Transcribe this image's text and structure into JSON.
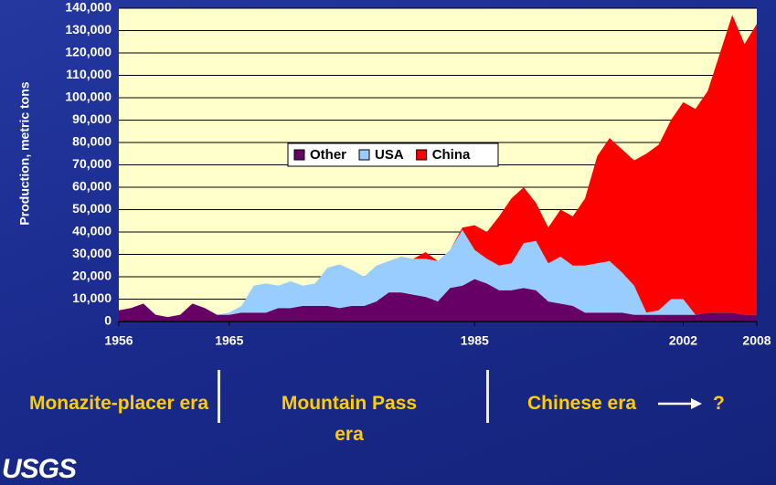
{
  "chart_data": {
    "type": "stacked-area",
    "ylabel": "Production, metric tons",
    "x": [
      1956,
      1957,
      1958,
      1959,
      1960,
      1961,
      1962,
      1963,
      1964,
      1965,
      1966,
      1967,
      1968,
      1969,
      1970,
      1971,
      1972,
      1973,
      1974,
      1975,
      1976,
      1977,
      1978,
      1979,
      1980,
      1981,
      1982,
      1983,
      1984,
      1985,
      1986,
      1987,
      1988,
      1989,
      1990,
      1991,
      1992,
      1993,
      1994,
      1995,
      1996,
      1997,
      1998,
      1999,
      2000,
      2001,
      2002,
      2003,
      2004,
      2005,
      2006,
      2007,
      2008
    ],
    "series": [
      {
        "name": "Other",
        "color": "#660066",
        "values": [
          5000,
          6000,
          8000,
          3000,
          2000,
          3000,
          8000,
          6000,
          3000,
          3000,
          4000,
          4000,
          4000,
          6000,
          6000,
          7000,
          7000,
          7000,
          6000,
          7000,
          7000,
          9000,
          13000,
          13000,
          12000,
          11000,
          9000,
          15000,
          16000,
          19000,
          17000,
          14000,
          14000,
          15000,
          14000,
          9000,
          8000,
          7000,
          4000,
          4000,
          4000,
          4000,
          3000,
          3000,
          3000,
          3000,
          3000,
          3000,
          4000,
          4000,
          4000,
          3000,
          3000
        ]
      },
      {
        "name": "USA",
        "color": "#99ccff",
        "values": [
          0,
          0,
          0,
          0,
          0,
          0,
          0,
          0,
          0,
          1000,
          3000,
          12000,
          13000,
          10000,
          12000,
          9000,
          10000,
          17000,
          19500,
          16000,
          13000,
          16000,
          14000,
          16000,
          16000,
          17000,
          18000,
          17000,
          25000,
          13000,
          11000,
          11000,
          12000,
          20000,
          22000,
          17000,
          21000,
          18000,
          21000,
          22000,
          23000,
          18000,
          13000,
          1000,
          2000,
          7000,
          7000,
          0,
          0,
          0,
          0,
          0,
          0
        ]
      },
      {
        "name": "China",
        "color": "#ff0000",
        "values": [
          0,
          0,
          0,
          0,
          0,
          0,
          0,
          0,
          0,
          0,
          0,
          0,
          0,
          0,
          0,
          0,
          0,
          0,
          0,
          0,
          0,
          0,
          0,
          0,
          0,
          3000,
          0,
          0,
          1000,
          11000,
          12000,
          22000,
          29000,
          25000,
          17000,
          16000,
          21000,
          22000,
          30000,
          48000,
          55000,
          55000,
          56000,
          71000,
          74000,
          80000,
          88000,
          92000,
          99000,
          116000,
          133000,
          121000,
          130000
        ]
      }
    ],
    "xlim": [
      1956,
      2008
    ],
    "xticks": [
      1956,
      1965,
      1985,
      2002,
      2008
    ],
    "ylim": [
      0,
      140000
    ],
    "yticks": [
      {
        "value": 0,
        "label": "0"
      },
      {
        "value": 10000,
        "label": "10,000"
      },
      {
        "value": 20000,
        "label": "20,000"
      },
      {
        "value": 30000,
        "label": "30,000"
      },
      {
        "value": 40000,
        "label": "40,000"
      },
      {
        "value": 50000,
        "label": "50,000"
      },
      {
        "value": 60000,
        "label": "60,000"
      },
      {
        "value": 70000,
        "label": "70,000"
      },
      {
        "value": 80000,
        "label": "80,000"
      },
      {
        "value": 90000,
        "label": "90,000"
      },
      {
        "value": 100000,
        "label": "100,000"
      },
      {
        "value": 110000,
        "label": "110,000"
      },
      {
        "value": 120000,
        "label": "120,000"
      },
      {
        "value": 130000,
        "label": "130,000"
      },
      {
        "value": 140000,
        "label": "140,000"
      }
    ],
    "grid": true,
    "plot_background": "#ffffcc"
  },
  "eras": [
    "Monazite-placer era",
    "Mountain Pass era",
    "Chinese era",
    "?"
  ],
  "logo": "USGS"
}
